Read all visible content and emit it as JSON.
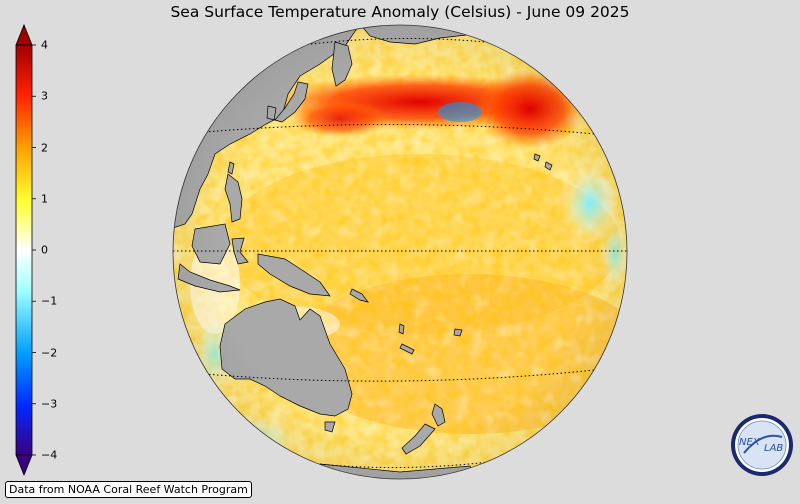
{
  "title": "Sea Surface Temperature Anomaly (Celsius) - June 09 2025",
  "colorbar": {
    "min": -4,
    "max": 4,
    "ticks": [
      {
        "value": 4,
        "label": "4"
      },
      {
        "value": 3,
        "label": "3"
      },
      {
        "value": 2,
        "label": "2"
      },
      {
        "value": 1,
        "label": "1"
      },
      {
        "value": 0,
        "label": "0"
      },
      {
        "value": -1,
        "label": "−1"
      },
      {
        "value": -2,
        "label": "−2"
      },
      {
        "value": -3,
        "label": "−3"
      },
      {
        "value": -4,
        "label": "−4"
      }
    ],
    "colors": [
      "#3a0080",
      "#0040ff",
      "#00b0ff",
      "#7ff0ff",
      "#ffffff",
      "#ffff40",
      "#ffb000",
      "#ff4000",
      "#a00000"
    ]
  },
  "map": {
    "projection": "orthographic",
    "land_color": "#a9a9a9",
    "ocean_base_color": "#ffe680",
    "graticule_style": "dotted"
  },
  "credit": "Data from NOAA Coral Reef Watch Program",
  "logo": {
    "icon": "nexlab-logo-icon",
    "text_left": "NEX",
    "text_right": "LAB"
  }
}
